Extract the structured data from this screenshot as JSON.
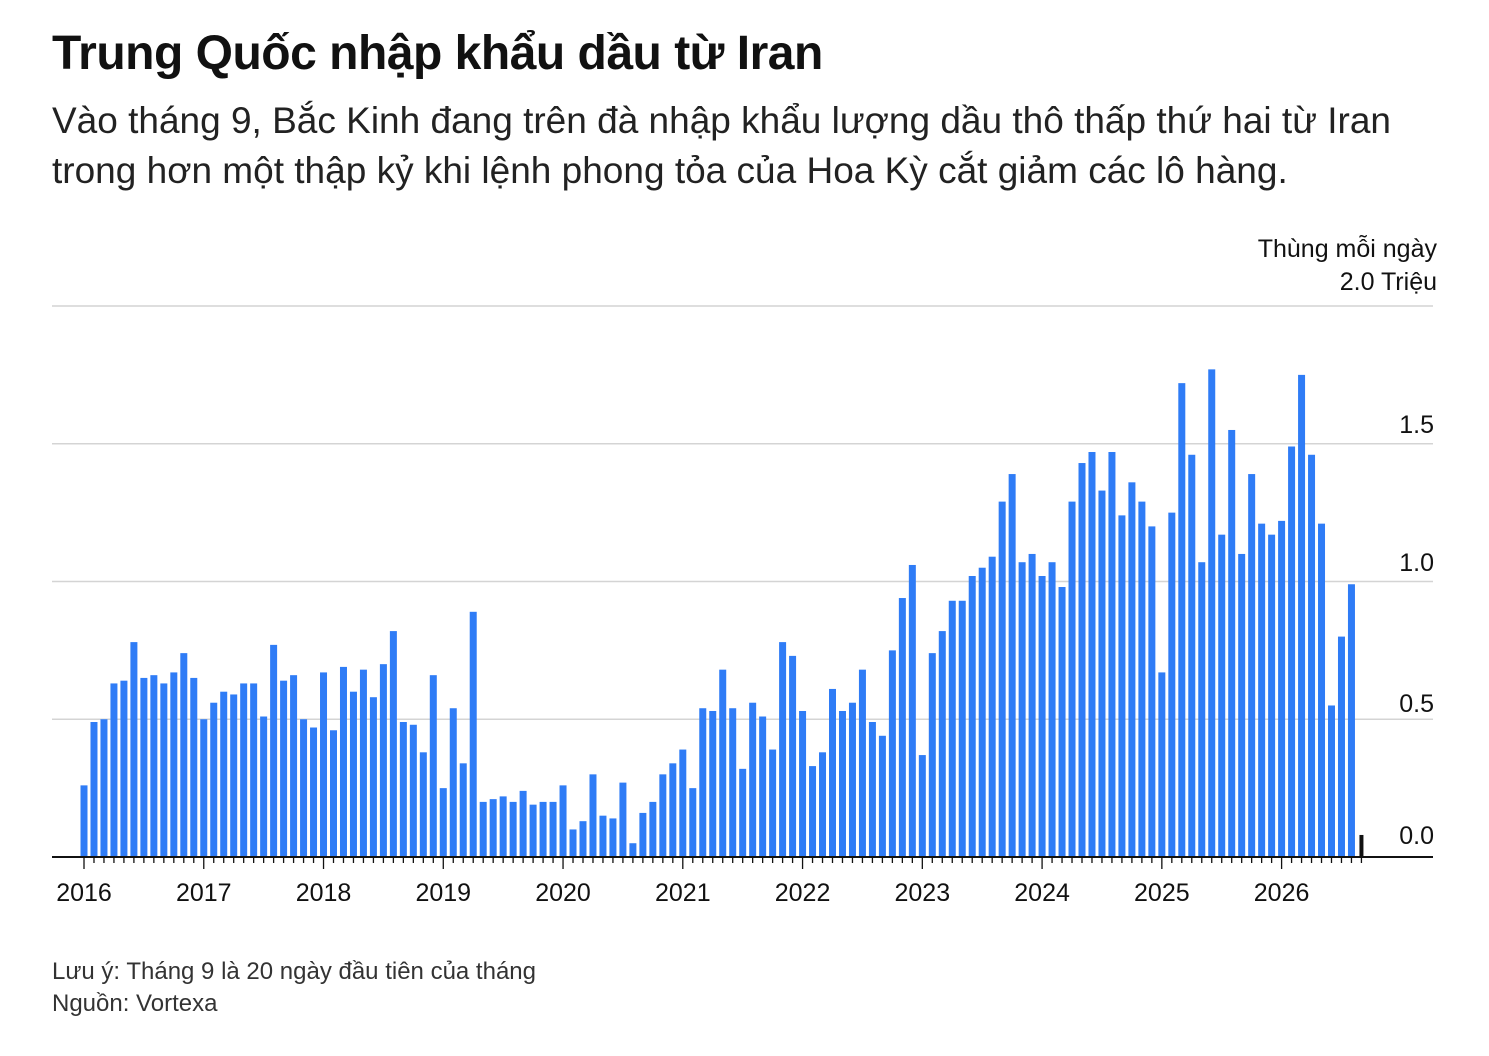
{
  "title": "Trung Quốc nhập khẩu dầu từ Iran",
  "subtitle": "Vào tháng 9, Bắc Kinh đang trên đà nhập khẩu lượng dầu thô thấp thứ hai từ Iran trong hơn một thập kỷ khi lệnh phong tỏa của Hoa Kỳ cắt giảm các lô hàng.",
  "note": "Lưu ý: Tháng 9 là 20 ngày đầu tiên của tháng",
  "source": "Nguồn: Vortexa",
  "colors": {
    "bar": "#2f7cf6",
    "partial_bar": "#111111",
    "grid": "#d4d4d4",
    "axis": "#111111"
  },
  "chart_data": {
    "type": "bar",
    "unit_label": "Thùng mỗi ngày",
    "top_tick_label": "2.0 Triệu",
    "y_tick_labels": [
      "0.0",
      "0.5",
      "1.0",
      "1.5"
    ],
    "ylim": [
      0,
      2.0
    ],
    "x_tick_labels": [
      "2016",
      "2017",
      "2018",
      "2019",
      "2020",
      "2021",
      "2022",
      "2023",
      "2024",
      "2025",
      "2026"
    ],
    "grid": true,
    "start": "2016-01",
    "frequency": "monthly",
    "values": [
      0.26,
      0.49,
      0.5,
      0.63,
      0.64,
      0.78,
      0.65,
      0.66,
      0.63,
      0.67,
      0.74,
      0.65,
      0.5,
      0.56,
      0.6,
      0.59,
      0.63,
      0.63,
      0.51,
      0.77,
      0.64,
      0.66,
      0.5,
      0.47,
      0.67,
      0.46,
      0.69,
      0.6,
      0.68,
      0.58,
      0.7,
      0.82,
      0.49,
      0.48,
      0.38,
      0.66,
      0.25,
      0.54,
      0.34,
      0.89,
      0.2,
      0.21,
      0.22,
      0.2,
      0.24,
      0.19,
      0.2,
      0.2,
      0.26,
      0.1,
      0.13,
      0.3,
      0.15,
      0.14,
      0.27,
      0.05,
      0.16,
      0.2,
      0.3,
      0.34,
      0.39,
      0.25,
      0.54,
      0.53,
      0.68,
      0.54,
      0.32,
      0.56,
      0.51,
      0.39,
      0.78,
      0.73,
      0.53,
      0.33,
      0.38,
      0.61,
      0.53,
      0.56,
      0.68,
      0.49,
      0.44,
      0.75,
      0.94,
      1.06,
      0.37,
      0.74,
      0.82,
      0.93,
      0.93,
      1.02,
      1.05,
      1.09,
      1.29,
      1.39,
      1.07,
      1.1,
      1.02,
      1.07,
      0.98,
      1.29,
      1.43,
      1.47,
      1.33,
      1.47,
      1.24,
      1.36,
      1.29,
      1.2,
      0.67,
      1.25,
      1.72,
      1.46,
      1.07,
      1.77,
      1.17,
      1.55,
      1.1,
      1.39,
      1.21,
      1.17,
      1.22,
      1.49,
      1.75,
      1.46,
      1.21,
      0.55,
      0.8,
      0.99,
      0.08
    ],
    "last_value_partial": true
  }
}
